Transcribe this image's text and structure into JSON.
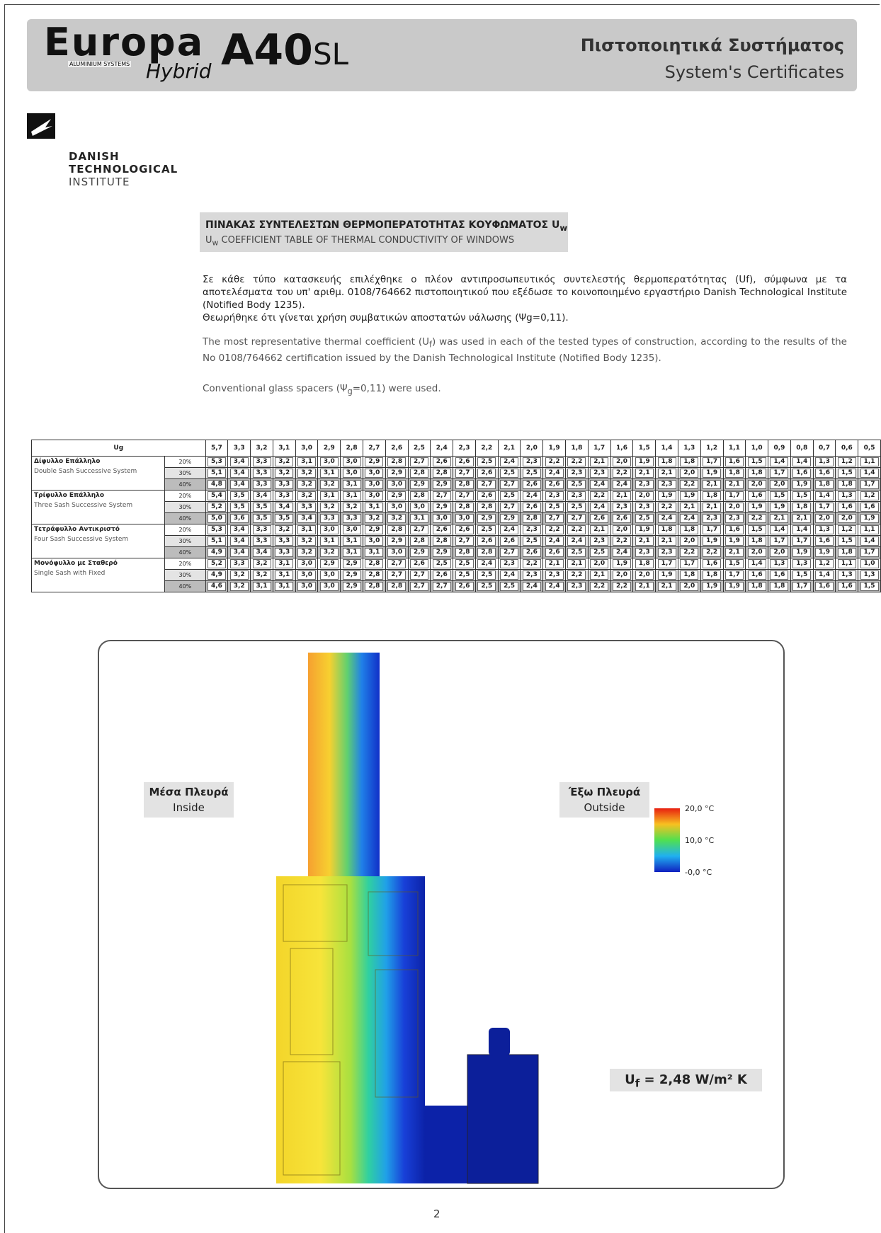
{
  "header": {
    "brand": "Europa",
    "brand_sub": "ALUMINIUM SYSTEMS",
    "hybrid": "Hybrid",
    "model": "A40",
    "model_suffix": "SL",
    "title_gr": "Πιστοποιητικά Συστήματος",
    "title_en": "System's Certificates"
  },
  "institute": {
    "lines": [
      "DANISH",
      "TECHNOLOGICAL",
      "INSTITUTE"
    ]
  },
  "table_title": {
    "gr": [
      "ΠΙΝΑΚΑΣ ΣΥΝΤΕΛΕΣΤΩΝ ΘΕΡΜΟΠΕΡΑΤΟΤΗΤΑΣ ΚΟΥΦΩΜΑΤΟΣ U",
      "w"
    ],
    "en": [
      "U",
      "w",
      " COEFFICIENT TABLE OF THERMAL CONDUCTIVITY OF WINDOWS"
    ]
  },
  "paragraphs": {
    "gr1": "Σε κάθε τύπο κατασκευής επιλέχθηκε ο πλέον αντιπροσωπευτικός συντελεστής θερμοπερατότητας (Uf), σύμφωνα με τα αποτελέσματα του υπ' αριθμ. 0108/764662 πιστοποιητικού που εξέδωσε το κοινοποιημένο εργαστήριο Danish Technological Institute (Notified Body 1235).",
    "gr2": "Θεωρήθηκε ότι γίνεται χρήση συμβατικών αποστατών υάλωσης (Ψg=0,11).",
    "en1": [
      "The most representative thermal coefficient (U",
      "f",
      ") was used in each of the tested types of construction, according to the results of the No 0108/764662 certification issued by the Danish Technological Institute (Notified Body 1235)."
    ],
    "en2": [
      "Conventional glass spacers (Ψ",
      "g",
      "=0,11) were used."
    ]
  },
  "table": {
    "header": "Ug",
    "columns": [
      "5,7",
      "3,3",
      "3,2",
      "3,1",
      "3,0",
      "2,9",
      "2,8",
      "2,7",
      "2,6",
      "2,5",
      "2,4",
      "2,3",
      "2,2",
      "2,1",
      "2,0",
      "1,9",
      "1,8",
      "1,7",
      "1,6",
      "1,5",
      "1,4",
      "1,3",
      "1,2",
      "1,1",
      "1,0",
      "0,9",
      "0,8",
      "0,7",
      "0,6",
      "0,5"
    ],
    "groups": [
      {
        "name_gr": "Δίφυλλο Επάλληλο",
        "name_en": "Double Sash Successive System",
        "rows": [
          {
            "pct": "20%",
            "values": [
              "5,3",
              "3,4",
              "3,3",
              "3,2",
              "3,1",
              "3,0",
              "3,0",
              "2,9",
              "2,8",
              "2,7",
              "2,6",
              "2,6",
              "2,5",
              "2,4",
              "2,3",
              "2,2",
              "2,2",
              "2,1",
              "2,0",
              "1,9",
              "1,8",
              "1,8",
              "1,7",
              "1,6",
              "1,5",
              "1,4",
              "1,4",
              "1,3",
              "1,2",
              "1,1"
            ]
          },
          {
            "pct": "30%",
            "values": [
              "5,1",
              "3,4",
              "3,3",
              "3,2",
              "3,2",
              "3,1",
              "3,0",
              "3,0",
              "2,9",
              "2,8",
              "2,8",
              "2,7",
              "2,6",
              "2,5",
              "2,5",
              "2,4",
              "2,3",
              "2,3",
              "2,2",
              "2,1",
              "2,1",
              "2,0",
              "1,9",
              "1,8",
              "1,8",
              "1,7",
              "1,6",
              "1,6",
              "1,5",
              "1,4"
            ]
          },
          {
            "pct": "40%",
            "values": [
              "4,8",
              "3,4",
              "3,3",
              "3,3",
              "3,2",
              "3,2",
              "3,1",
              "3,0",
              "3,0",
              "2,9",
              "2,9",
              "2,8",
              "2,7",
              "2,7",
              "2,6",
              "2,6",
              "2,5",
              "2,4",
              "2,4",
              "2,3",
              "2,3",
              "2,2",
              "2,1",
              "2,1",
              "2,0",
              "2,0",
              "1,9",
              "1,8",
              "1,8",
              "1,7"
            ]
          }
        ]
      },
      {
        "name_gr": "Τρίφυλλο Επάλληλο",
        "name_en": "Three Sash Successive System",
        "rows": [
          {
            "pct": "20%",
            "values": [
              "5,4",
              "3,5",
              "3,4",
              "3,3",
              "3,2",
              "3,1",
              "3,1",
              "3,0",
              "2,9",
              "2,8",
              "2,7",
              "2,7",
              "2,6",
              "2,5",
              "2,4",
              "2,3",
              "2,3",
              "2,2",
              "2,1",
              "2,0",
              "1,9",
              "1,9",
              "1,8",
              "1,7",
              "1,6",
              "1,5",
              "1,5",
              "1,4",
              "1,3",
              "1,2"
            ]
          },
          {
            "pct": "30%",
            "values": [
              "5,2",
              "3,5",
              "3,5",
              "3,4",
              "3,3",
              "3,2",
              "3,2",
              "3,1",
              "3,0",
              "3,0",
              "2,9",
              "2,8",
              "2,8",
              "2,7",
              "2,6",
              "2,5",
              "2,5",
              "2,4",
              "2,3",
              "2,3",
              "2,2",
              "2,1",
              "2,1",
              "2,0",
              "1,9",
              "1,9",
              "1,8",
              "1,7",
              "1,6",
              "1,6"
            ]
          },
          {
            "pct": "40%",
            "values": [
              "5,0",
              "3,6",
              "3,5",
              "3,5",
              "3,4",
              "3,3",
              "3,3",
              "3,2",
              "3,2",
              "3,1",
              "3,0",
              "3,0",
              "2,9",
              "2,9",
              "2,8",
              "2,7",
              "2,7",
              "2,6",
              "2,6",
              "2,5",
              "2,4",
              "2,4",
              "2,3",
              "2,3",
              "2,2",
              "2,1",
              "2,1",
              "2,0",
              "2,0",
              "1,9"
            ]
          }
        ]
      },
      {
        "name_gr": "Τετράφυλλο Αντικριστό",
        "name_en": "Four Sash Successive System",
        "rows": [
          {
            "pct": "20%",
            "values": [
              "5,3",
              "3,4",
              "3,3",
              "3,2",
              "3,1",
              "3,0",
              "3,0",
              "2,9",
              "2,8",
              "2,7",
              "2,6",
              "2,6",
              "2,5",
              "2,4",
              "2,3",
              "2,2",
              "2,2",
              "2,1",
              "2,0",
              "1,9",
              "1,8",
              "1,8",
              "1,7",
              "1,6",
              "1,5",
              "1,4",
              "1,4",
              "1,3",
              "1,2",
              "1,1"
            ]
          },
          {
            "pct": "30%",
            "values": [
              "5,1",
              "3,4",
              "3,3",
              "3,3",
              "3,2",
              "3,1",
              "3,1",
              "3,0",
              "2,9",
              "2,8",
              "2,8",
              "2,7",
              "2,6",
              "2,6",
              "2,5",
              "2,4",
              "2,4",
              "2,3",
              "2,2",
              "2,1",
              "2,1",
              "2,0",
              "1,9",
              "1,9",
              "1,8",
              "1,7",
              "1,7",
              "1,6",
              "1,5",
              "1,4"
            ]
          },
          {
            "pct": "40%",
            "values": [
              "4,9",
              "3,4",
              "3,4",
              "3,3",
              "3,2",
              "3,2",
              "3,1",
              "3,1",
              "3,0",
              "2,9",
              "2,9",
              "2,8",
              "2,8",
              "2,7",
              "2,6",
              "2,6",
              "2,5",
              "2,5",
              "2,4",
              "2,3",
              "2,3",
              "2,2",
              "2,2",
              "2,1",
              "2,0",
              "2,0",
              "1,9",
              "1,9",
              "1,8",
              "1,7"
            ]
          }
        ]
      },
      {
        "name_gr": "Μονόφυλλο με Σταθερό",
        "name_en": "Single Sash with Fixed",
        "rows": [
          {
            "pct": "20%",
            "values": [
              "5,2",
              "3,3",
              "3,2",
              "3,1",
              "3,0",
              "2,9",
              "2,9",
              "2,8",
              "2,7",
              "2,6",
              "2,5",
              "2,5",
              "2,4",
              "2,3",
              "2,2",
              "2,1",
              "2,1",
              "2,0",
              "1,9",
              "1,8",
              "1,7",
              "1,7",
              "1,6",
              "1,5",
              "1,4",
              "1,3",
              "1,3",
              "1,2",
              "1,1",
              "1,0"
            ]
          },
          {
            "pct": "30%",
            "values": [
              "4,9",
              "3,2",
              "3,2",
              "3,1",
              "3,0",
              "3,0",
              "2,9",
              "2,8",
              "2,7",
              "2,7",
              "2,6",
              "2,5",
              "2,5",
              "2,4",
              "2,3",
              "2,3",
              "2,2",
              "2,1",
              "2,0",
              "2,0",
              "1,9",
              "1,8",
              "1,8",
              "1,7",
              "1,6",
              "1,6",
              "1,5",
              "1,4",
              "1,3",
              "1,3"
            ]
          },
          {
            "pct": "40%",
            "values": [
              "4,6",
              "3,2",
              "3,1",
              "3,1",
              "3,0",
              "3,0",
              "2,9",
              "2,8",
              "2,8",
              "2,7",
              "2,7",
              "2,6",
              "2,5",
              "2,5",
              "2,4",
              "2,4",
              "2,3",
              "2,2",
              "2,2",
              "2,1",
              "2,1",
              "2,0",
              "1,9",
              "1,9",
              "1,8",
              "1,8",
              "1,7",
              "1,6",
              "1,6",
              "1,5"
            ]
          }
        ]
      }
    ]
  },
  "figure": {
    "inside_gr": "Μέσα Πλευρά",
    "inside_en": "Inside",
    "outside_gr": "Έξω Πλευρά",
    "outside_en": "Outside",
    "legend": [
      "20,0 °C",
      "10,0 °C",
      "-0,0 °C"
    ],
    "uf": [
      "U",
      "f",
      " = 2,48 W/m² K"
    ]
  },
  "page_number": "2"
}
